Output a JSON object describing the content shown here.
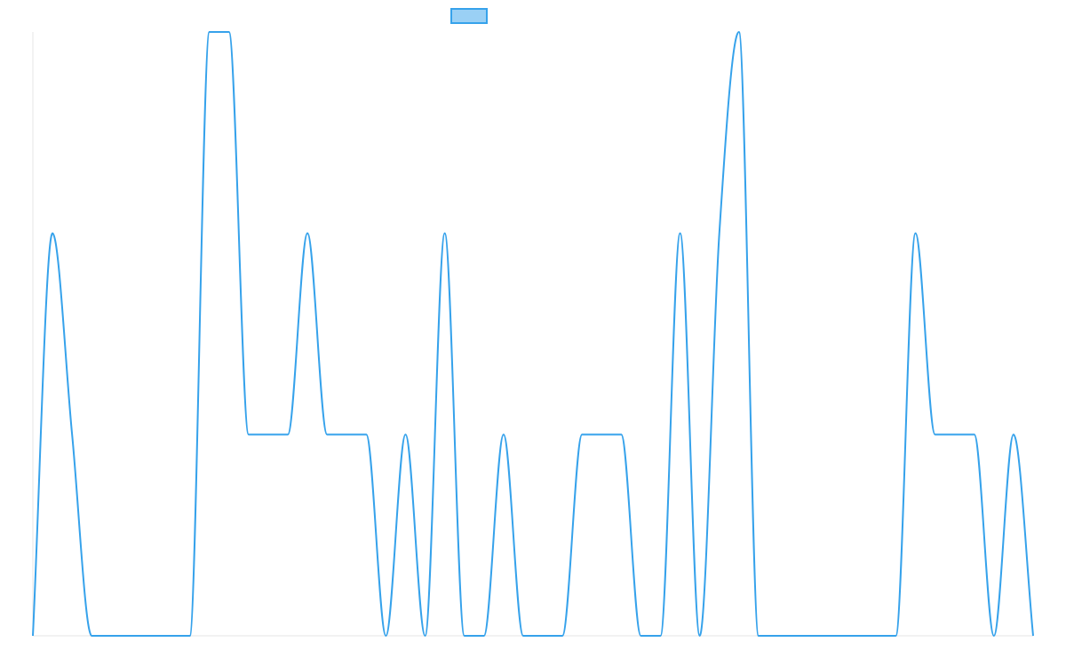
{
  "chart_data": {
    "type": "line",
    "categories": [
      null,
      null,
      null,
      null,
      null,
      null,
      null,
      null,
      null,
      null,
      null,
      null,
      null,
      null,
      null,
      null,
      null,
      null,
      null,
      null,
      null,
      null,
      null,
      null,
      null,
      null,
      null,
      null,
      null,
      null,
      null,
      null,
      null,
      null,
      null,
      null,
      null,
      null,
      null,
      null,
      null,
      null,
      null,
      null,
      null,
      null,
      null,
      null,
      null,
      null,
      null,
      null
    ],
    "series": [
      {
        "color": "#36a2eb",
        "values": [
          0,
          2,
          1,
          0,
          0,
          0,
          0,
          0,
          0,
          3,
          3,
          1,
          1,
          1,
          2,
          1,
          1,
          1,
          0,
          1,
          0,
          2,
          0,
          0,
          1,
          0,
          0,
          0,
          1,
          1,
          1,
          0,
          0,
          2,
          0,
          2,
          3,
          0,
          0,
          0,
          0,
          0,
          0,
          0,
          0,
          2,
          1,
          1,
          1,
          0,
          1,
          0
        ]
      }
    ],
    "ylim": [
      0,
      3
    ],
    "smooth": "monotone"
  }
}
